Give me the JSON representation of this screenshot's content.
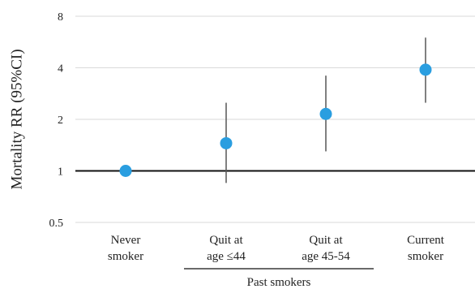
{
  "chart_data": {
    "type": "scatter",
    "title": "",
    "ylabel": "Mortality RR (95%CI)",
    "xlabel": "",
    "y_scale": "log2",
    "ylim": [
      0.5,
      8
    ],
    "yticks": [
      {
        "value": 0.5,
        "label": "0.5"
      },
      {
        "value": 1,
        "label": "1"
      },
      {
        "value": 2,
        "label": "2"
      },
      {
        "value": 4,
        "label": "4"
      },
      {
        "value": 8,
        "label": "8"
      }
    ],
    "reference_line": 1,
    "grid": true,
    "categories": [
      {
        "line1": "Never",
        "line2": "smoker"
      },
      {
        "line1": "Quit at",
        "line2": "age ≤44"
      },
      {
        "line1": "Quit at",
        "line2": "age 45-54"
      },
      {
        "line1": "Current",
        "line2": "smoker"
      }
    ],
    "points": [
      {
        "category": "Never smoker",
        "rr": 1.0,
        "ci_low": null,
        "ci_high": null
      },
      {
        "category": "Quit at age ≤44",
        "rr": 1.45,
        "ci_low": 0.85,
        "ci_high": 2.5
      },
      {
        "category": "Quit at age 45-54",
        "rr": 2.15,
        "ci_low": 1.3,
        "ci_high": 3.6
      },
      {
        "category": "Current smoker",
        "rr": 3.9,
        "ci_low": 2.5,
        "ci_high": 6.0
      }
    ],
    "group_label": "Past smokers",
    "colors": {
      "marker": "#2a9ee0",
      "ci": "#555555",
      "grid": "#d9d9d9",
      "ref": "#111111"
    }
  }
}
